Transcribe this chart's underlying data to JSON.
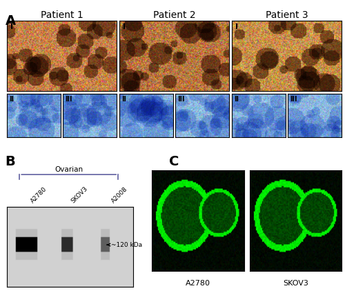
{
  "figure_bg": "#f0f0f0",
  "panel_a_label": "A",
  "panel_b_label": "B",
  "panel_c_label": "C",
  "patient_labels": [
    "Patient 1",
    "Patient 2",
    "Patient 3"
  ],
  "patient_label_fontsize": 10,
  "panel_label_fontsize": 14,
  "panel_label_fontweight": "bold",
  "sub_labels_I": [
    "I",
    "I",
    "I"
  ],
  "sub_labels_II": [
    "II",
    "II",
    "II"
  ],
  "sub_labels_III": [
    "III",
    "III",
    "III"
  ],
  "sub_label_fontsize": 8,
  "brown_colors": [
    "#c8834a",
    "#b87840",
    "#c8904a"
  ],
  "blue_color": "#7ab0d4",
  "blue_light": "#a8c8e0",
  "gel_bg": "#d0d0d0",
  "gel_band_color": "#111111",
  "gel_label": "~120 kDa",
  "gel_lanes": [
    "A2780",
    "SKOV3",
    "A2008"
  ],
  "ovarian_label": "Ovarian",
  "bracket_color": "#6060a0",
  "green_cell_color": "#00cc00",
  "green_bg_color": "#001800",
  "cell_labels": [
    "A2780",
    "SKOV3"
  ],
  "arrow_color": "#000000",
  "white_color": "#ffffff",
  "figure_width": 5.0,
  "figure_height": 4.25,
  "dpi": 100
}
